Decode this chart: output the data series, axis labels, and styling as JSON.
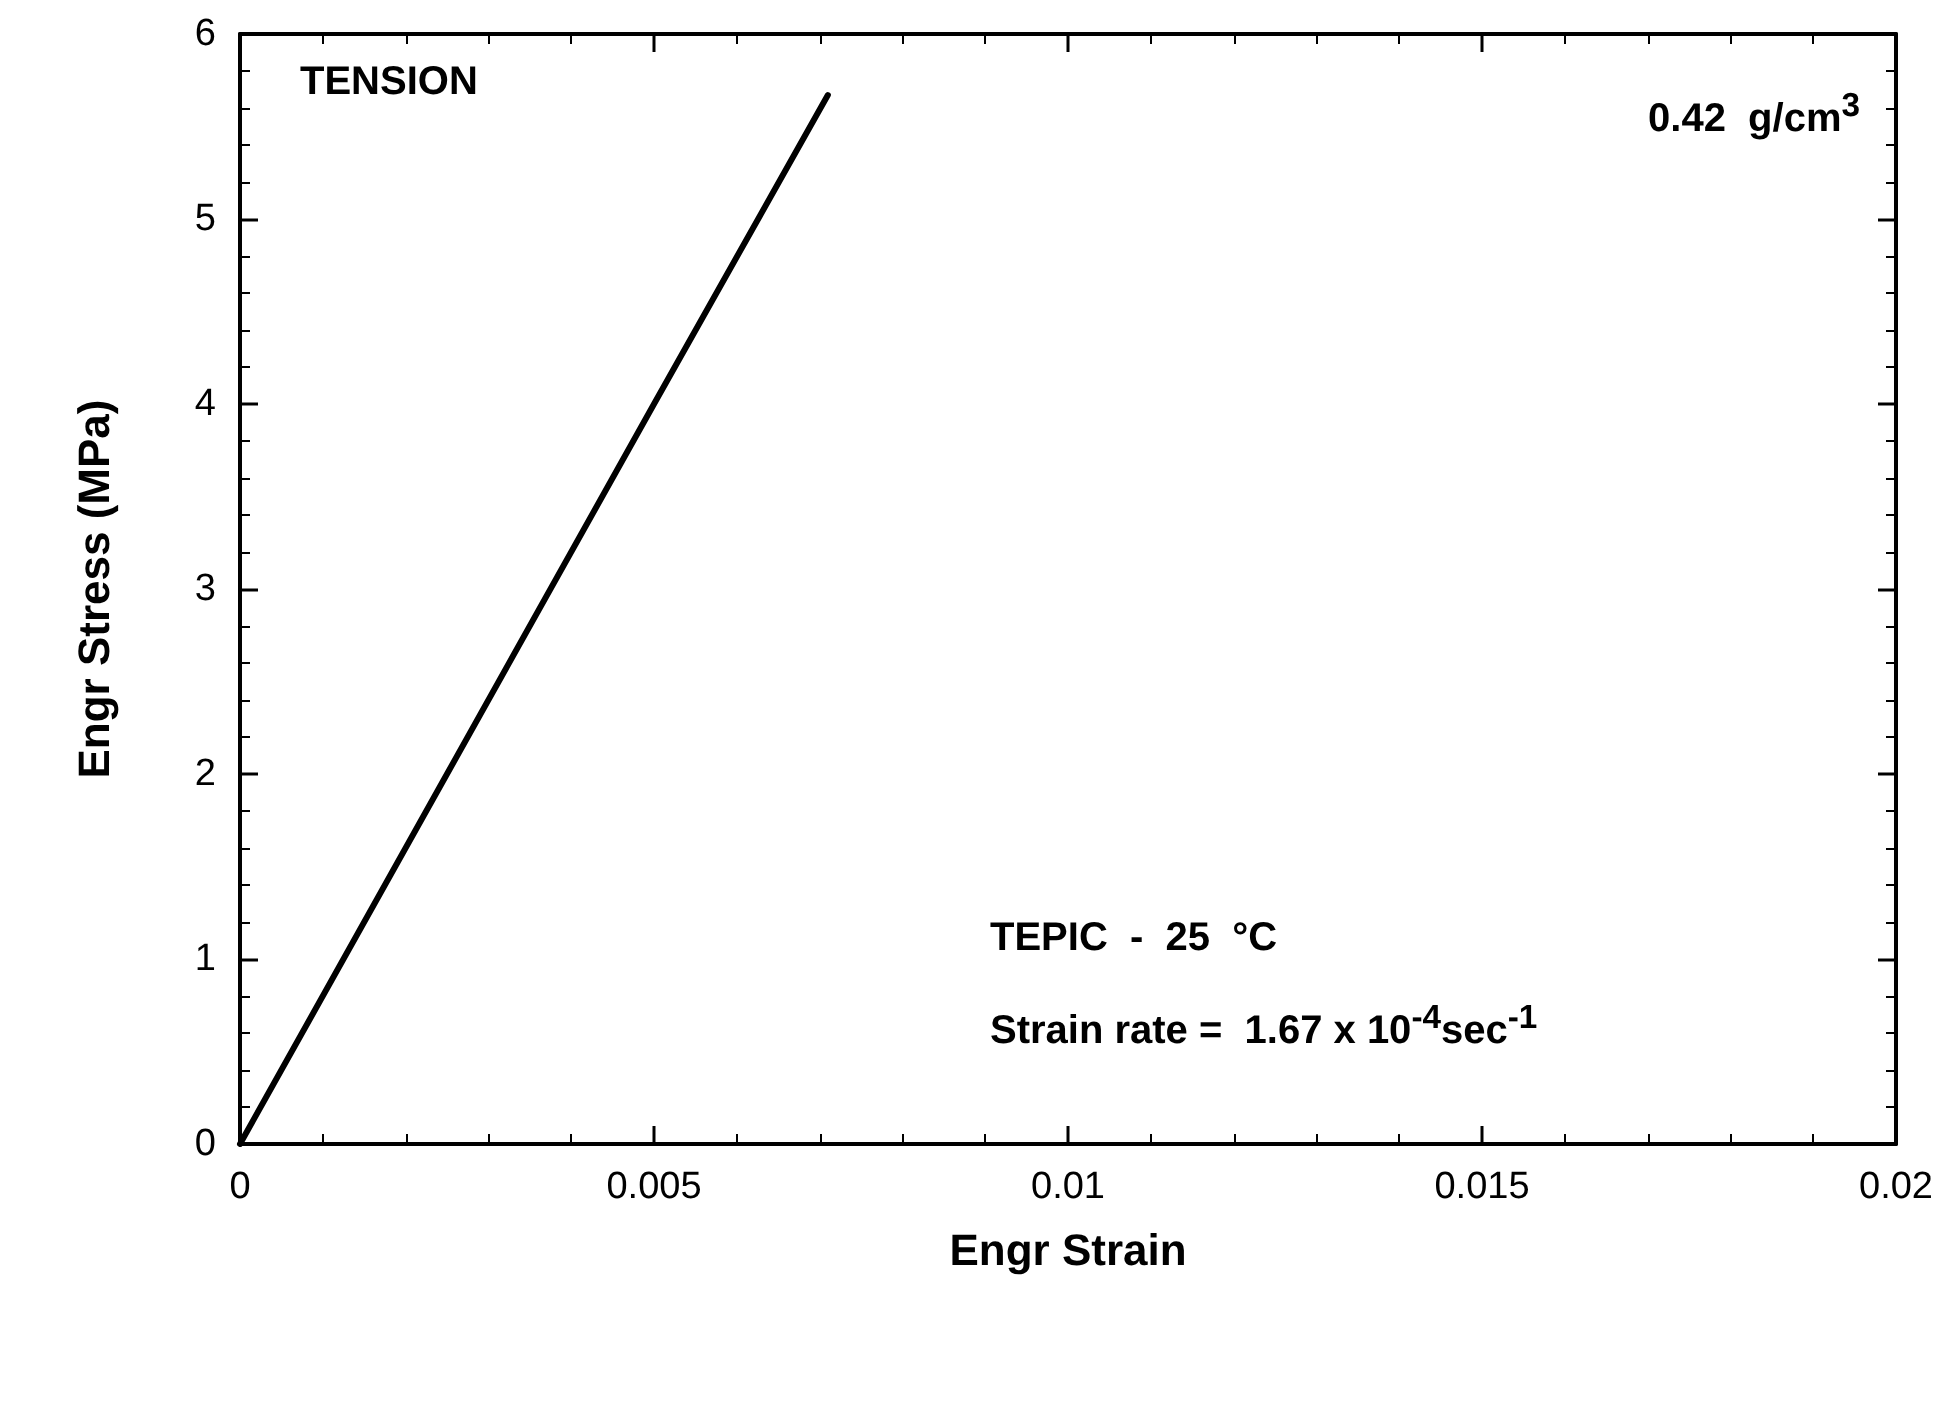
{
  "chart_data": {
    "type": "line",
    "xlabel": "Engr Strain",
    "ylabel": "Engr Stress (MPa)",
    "x": [
      0,
      0.0025,
      0.005,
      0.0071
    ],
    "series": [
      {
        "color": "#000000",
        "values": [
          0,
          2.0,
          4.0,
          5.67
        ]
      }
    ],
    "xlim": [
      0,
      0.02
    ],
    "xticks": [
      0,
      0.005,
      0.01,
      0.015,
      0.02
    ],
    "ylim": [
      0,
      6
    ],
    "yticks": [
      0,
      1,
      2,
      3,
      4,
      5,
      6
    ],
    "grid": false,
    "marker": "none",
    "line_style": "solid",
    "annotations": [
      "TENSION",
      "0.42  g/cm$^{3}$",
      "TEPIC  -  25  °C",
      "Strain rate =  1.67 x 10$^{-4}$sec$^{-1}$"
    ]
  }
}
